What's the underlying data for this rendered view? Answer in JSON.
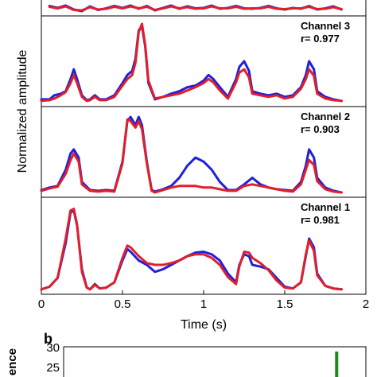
{
  "chart_data": [
    {
      "type": "line",
      "ylabel": "Normalized amplitude",
      "xlabel": "Time (s)",
      "xlim": [
        0,
        2
      ],
      "x_ticks": [
        "0",
        "0.5",
        "1",
        "1.5",
        "2"
      ],
      "grid": false,
      "series_colors": [
        "#1f1fe0",
        "#e01f2a"
      ],
      "panels": [
        {
          "channel_label": "",
          "r_label": "",
          "partial": true,
          "series": [
            {
              "x": [
                0.05,
                0.1,
                0.15,
                0.2,
                0.25,
                0.3,
                0.35,
                0.4,
                0.45,
                0.5,
                0.55,
                0.6,
                0.65,
                0.7,
                0.75,
                0.8,
                0.85,
                0.9,
                0.95,
                1.0,
                1.05,
                1.1,
                1.15,
                1.2,
                1.25,
                1.3,
                1.35,
                1.4,
                1.45,
                1.5,
                1.55,
                1.6,
                1.65,
                1.7,
                1.75,
                1.8,
                1.85
              ],
              "y": [
                0.85,
                0.6,
                0.9,
                0.4,
                0.2,
                0.8,
                0.35,
                0.55,
                0.85,
                0.6,
                0.9,
                0.5,
                0.85,
                0.3,
                0.6,
                0.9,
                0.5,
                0.8,
                0.55,
                0.6,
                0.9,
                0.5,
                0.6,
                0.85,
                0.55,
                0.5,
                0.6,
                0.85,
                0.55,
                0.4,
                0.6,
                0.5,
                0.85,
                0.4,
                0.55,
                0.8,
                0.4
              ]
            },
            {
              "x": [
                0.05,
                0.1,
                0.15,
                0.2,
                0.25,
                0.3,
                0.35,
                0.4,
                0.45,
                0.5,
                0.55,
                0.6,
                0.65,
                0.7,
                0.75,
                0.8,
                0.85,
                0.9,
                0.95,
                1.0,
                1.05,
                1.1,
                1.15,
                1.2,
                1.25,
                1.3,
                1.35,
                1.4,
                1.45,
                1.5,
                1.55,
                1.6,
                1.65,
                1.7,
                1.75,
                1.8,
                1.85
              ],
              "y": [
                0.75,
                0.55,
                0.8,
                0.35,
                0.3,
                0.7,
                0.4,
                0.5,
                0.75,
                0.55,
                0.8,
                0.55,
                0.75,
                0.35,
                0.55,
                0.8,
                0.55,
                0.7,
                0.5,
                0.55,
                0.8,
                0.55,
                0.55,
                0.75,
                0.5,
                0.55,
                0.55,
                0.75,
                0.5,
                0.45,
                0.55,
                0.55,
                0.75,
                0.45,
                0.5,
                0.7,
                0.45
              ]
            }
          ]
        },
        {
          "channel_label": "Channel 3",
          "r_label": "r= 0.977",
          "series": [
            {
              "x": [
                0,
                0.05,
                0.08,
                0.12,
                0.15,
                0.18,
                0.2,
                0.22,
                0.25,
                0.28,
                0.3,
                0.33,
                0.36,
                0.4,
                0.45,
                0.5,
                0.53,
                0.56,
                0.58,
                0.6,
                0.62,
                0.64,
                0.66,
                0.7,
                0.75,
                0.8,
                0.85,
                0.9,
                0.95,
                1.0,
                1.03,
                1.06,
                1.1,
                1.15,
                1.2,
                1.22,
                1.25,
                1.28,
                1.3,
                1.35,
                1.4,
                1.45,
                1.5,
                1.55,
                1.6,
                1.63,
                1.65,
                1.68,
                1.7,
                1.75,
                1.8,
                1.85
              ],
              "y": [
                0.05,
                0.05,
                0.1,
                0.12,
                0.15,
                0.3,
                0.42,
                0.3,
                0.1,
                0.04,
                0.05,
                0.1,
                0.05,
                0.05,
                0.1,
                0.25,
                0.35,
                0.4,
                0.55,
                0.9,
                0.95,
                0.7,
                0.25,
                0.05,
                0.08,
                0.12,
                0.15,
                0.2,
                0.22,
                0.28,
                0.35,
                0.3,
                0.2,
                0.08,
                0.3,
                0.45,
                0.52,
                0.4,
                0.15,
                0.12,
                0.1,
                0.12,
                0.08,
                0.1,
                0.2,
                0.35,
                0.52,
                0.42,
                0.15,
                0.08,
                0.05,
                0.03
              ]
            },
            {
              "x": [
                0,
                0.05,
                0.08,
                0.12,
                0.15,
                0.18,
                0.2,
                0.22,
                0.25,
                0.28,
                0.3,
                0.33,
                0.36,
                0.4,
                0.45,
                0.5,
                0.53,
                0.56,
                0.58,
                0.6,
                0.62,
                0.64,
                0.66,
                0.7,
                0.75,
                0.8,
                0.85,
                0.9,
                0.95,
                1.0,
                1.03,
                1.06,
                1.1,
                1.15,
                1.2,
                1.22,
                1.25,
                1.28,
                1.3,
                1.35,
                1.4,
                1.45,
                1.5,
                1.55,
                1.6,
                1.63,
                1.65,
                1.68,
                1.7,
                1.75,
                1.8,
                1.85
              ],
              "y": [
                0.03,
                0.04,
                0.06,
                0.1,
                0.14,
                0.25,
                0.35,
                0.25,
                0.08,
                0.03,
                0.04,
                0.08,
                0.04,
                0.04,
                0.08,
                0.22,
                0.3,
                0.35,
                0.5,
                0.88,
                0.98,
                0.72,
                0.28,
                0.06,
                0.08,
                0.1,
                0.12,
                0.16,
                0.2,
                0.25,
                0.3,
                0.26,
                0.16,
                0.06,
                0.26,
                0.38,
                0.42,
                0.32,
                0.12,
                0.1,
                0.08,
                0.1,
                0.06,
                0.08,
                0.18,
                0.3,
                0.42,
                0.34,
                0.12,
                0.06,
                0.04,
                0.03
              ]
            }
          ]
        },
        {
          "channel_label": "Channel 2",
          "r_label": "r= 0.903",
          "series": [
            {
              "x": [
                0,
                0.05,
                0.1,
                0.15,
                0.18,
                0.2,
                0.23,
                0.25,
                0.3,
                0.35,
                0.4,
                0.45,
                0.5,
                0.53,
                0.55,
                0.58,
                0.6,
                0.62,
                0.65,
                0.68,
                0.7,
                0.75,
                0.8,
                0.85,
                0.9,
                0.95,
                1.0,
                1.05,
                1.1,
                1.15,
                1.2,
                1.25,
                1.3,
                1.35,
                1.4,
                1.45,
                1.5,
                1.55,
                1.6,
                1.63,
                1.65,
                1.68,
                1.7,
                1.75,
                1.8,
                1.85
              ],
              "y": [
                0.05,
                0.08,
                0.1,
                0.3,
                0.5,
                0.55,
                0.45,
                0.15,
                0.05,
                0.04,
                0.05,
                0.04,
                0.4,
                0.9,
                0.95,
                0.85,
                0.95,
                0.85,
                0.4,
                0.05,
                0.03,
                0.06,
                0.1,
                0.2,
                0.35,
                0.45,
                0.4,
                0.3,
                0.15,
                0.05,
                0.05,
                0.12,
                0.2,
                0.12,
                0.08,
                0.06,
                0.05,
                0.04,
                0.15,
                0.35,
                0.55,
                0.45,
                0.2,
                0.08,
                0.04,
                0.02
              ]
            },
            {
              "x": [
                0,
                0.05,
                0.1,
                0.15,
                0.18,
                0.2,
                0.23,
                0.25,
                0.3,
                0.35,
                0.4,
                0.45,
                0.5,
                0.53,
                0.55,
                0.58,
                0.6,
                0.62,
                0.65,
                0.68,
                0.7,
                0.75,
                0.8,
                0.85,
                0.9,
                0.95,
                1.0,
                1.05,
                1.1,
                1.15,
                1.2,
                1.25,
                1.3,
                1.35,
                1.4,
                1.45,
                1.5,
                1.55,
                1.6,
                1.63,
                1.65,
                1.68,
                1.7,
                1.75,
                1.8,
                1.85
              ],
              "y": [
                0.04,
                0.07,
                0.09,
                0.25,
                0.42,
                0.5,
                0.4,
                0.12,
                0.04,
                0.03,
                0.04,
                0.03,
                0.38,
                0.92,
                0.9,
                0.82,
                0.9,
                0.8,
                0.38,
                0.04,
                0.02,
                0.05,
                0.08,
                0.1,
                0.1,
                0.1,
                0.08,
                0.08,
                0.06,
                0.04,
                0.04,
                0.1,
                0.12,
                0.1,
                0.08,
                0.06,
                0.04,
                0.03,
                0.12,
                0.3,
                0.42,
                0.36,
                0.16,
                0.06,
                0.03,
                0.02
              ]
            }
          ]
        },
        {
          "channel_label": "Channel 1",
          "r_label": "r= 0.981",
          "series": [
            {
              "x": [
                0,
                0.05,
                0.1,
                0.15,
                0.18,
                0.2,
                0.22,
                0.25,
                0.28,
                0.3,
                0.33,
                0.36,
                0.4,
                0.45,
                0.5,
                0.53,
                0.55,
                0.6,
                0.65,
                0.7,
                0.75,
                0.8,
                0.85,
                0.9,
                0.95,
                1.0,
                1.05,
                1.1,
                1.15,
                1.2,
                1.22,
                1.25,
                1.28,
                1.3,
                1.35,
                1.4,
                1.45,
                1.5,
                1.55,
                1.6,
                1.63,
                1.65,
                1.68,
                1.7,
                1.75,
                1.8,
                1.85
              ],
              "y": [
                0.02,
                0.05,
                0.15,
                0.55,
                0.9,
                0.92,
                0.75,
                0.25,
                0.04,
                0.02,
                0.08,
                0.03,
                0.04,
                0.1,
                0.35,
                0.48,
                0.45,
                0.35,
                0.3,
                0.22,
                0.25,
                0.3,
                0.35,
                0.4,
                0.44,
                0.45,
                0.42,
                0.35,
                0.2,
                0.1,
                0.3,
                0.42,
                0.4,
                0.3,
                0.28,
                0.25,
                0.15,
                0.05,
                0.03,
                0.1,
                0.4,
                0.6,
                0.5,
                0.2,
                0.06,
                0.03,
                0.02
              ]
            },
            {
              "x": [
                0,
                0.05,
                0.1,
                0.15,
                0.18,
                0.2,
                0.22,
                0.25,
                0.28,
                0.3,
                0.33,
                0.36,
                0.4,
                0.45,
                0.5,
                0.53,
                0.55,
                0.6,
                0.65,
                0.7,
                0.75,
                0.8,
                0.85,
                0.9,
                0.95,
                1.0,
                1.05,
                1.1,
                1.15,
                1.2,
                1.22,
                1.25,
                1.28,
                1.3,
                1.35,
                1.4,
                1.45,
                1.5,
                1.55,
                1.6,
                1.63,
                1.65,
                1.68,
                1.7,
                1.75,
                1.8,
                1.85
              ],
              "y": [
                0.02,
                0.05,
                0.15,
                0.6,
                0.92,
                0.94,
                0.76,
                0.22,
                0.04,
                0.02,
                0.07,
                0.03,
                0.04,
                0.1,
                0.38,
                0.52,
                0.5,
                0.4,
                0.32,
                0.3,
                0.3,
                0.32,
                0.35,
                0.4,
                0.42,
                0.42,
                0.38,
                0.3,
                0.16,
                0.08,
                0.28,
                0.45,
                0.44,
                0.38,
                0.32,
                0.24,
                0.12,
                0.04,
                0.03,
                0.1,
                0.42,
                0.58,
                0.46,
                0.18,
                0.06,
                0.03,
                0.02
              ]
            }
          ]
        }
      ]
    },
    {
      "type": "bar",
      "panel_letter": "b",
      "ylabel": "ence",
      "y_ticks": [
        "25",
        "30"
      ],
      "partial": true,
      "bar_color": "#1a8a1a",
      "bars": [
        {
          "x": 1.82,
          "y": 29
        }
      ]
    }
  ]
}
